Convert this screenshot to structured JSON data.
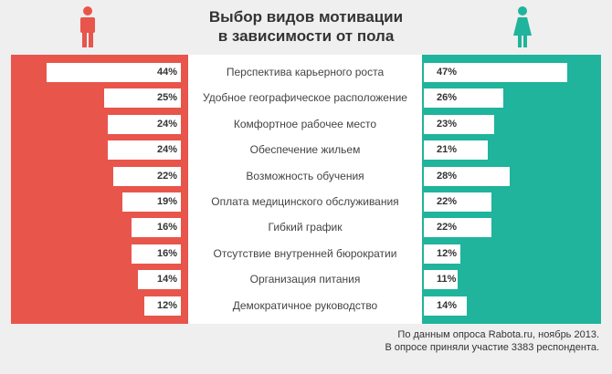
{
  "title_lines": [
    "Выбор видов мотивации",
    "в зависимости от пола"
  ],
  "icons": {
    "left": "male-icon",
    "right": "female-icon"
  },
  "colors": {
    "male": "#e8554b",
    "female": "#1fb49b",
    "bar": "#ffffff",
    "background": "#efefef"
  },
  "source_lines": [
    "По данным опроса Rabota.ru, ноябрь 2013.",
    "В опросе приняли участие 3383 респондента."
  ],
  "chart_data": {
    "type": "bar",
    "title": "Выбор видов мотивации в зависимости от пола",
    "categories": [
      "Перспектива карьерного роста",
      "Удобное географическое расположение",
      "Комфортное рабочее место",
      "Обеспечение жильем",
      "Возможность обучения",
      "Оплата медицинского обслуживания",
      "Гибкий график",
      "Отсутствие внутренней бюрократии",
      "Организация питания",
      "Демократичное руководство"
    ],
    "series": [
      {
        "values": [
          44,
          25,
          24,
          24,
          22,
          19,
          16,
          16,
          14,
          12
        ],
        "labels": [
          "44%",
          "25%",
          "24%",
          "24%",
          "22%",
          "19%",
          "16%",
          "16%",
          "14%",
          "12%"
        ]
      },
      {
        "values": [
          47,
          26,
          23,
          21,
          28,
          22,
          22,
          12,
          11,
          14
        ],
        "labels": [
          "47%",
          "26%",
          "23%",
          "21%",
          "28%",
          "22%",
          "22%",
          "12%",
          "11%",
          "14%"
        ]
      }
    ],
    "xlim": [
      0,
      50
    ]
  }
}
